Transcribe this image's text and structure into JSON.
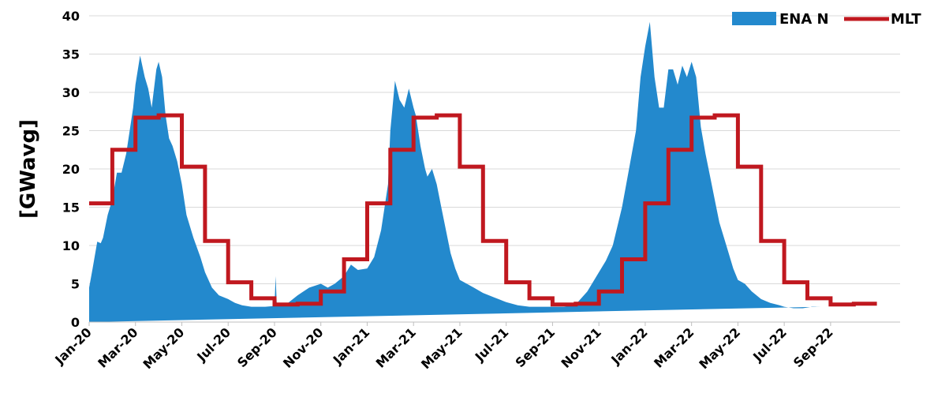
{
  "chart_data": {
    "type": "area",
    "ylabel": "[GWavg]",
    "ylim": [
      0,
      40
    ],
    "yticks": [
      0,
      5,
      10,
      15,
      20,
      25,
      30,
      35,
      40
    ],
    "xlim_month_index": [
      0,
      35
    ],
    "xtick_labels": [
      "Jan-20",
      "Mar-20",
      "May-20",
      "Jul-20",
      "Sep-20",
      "Nov-20",
      "Jan-21",
      "Mar-21",
      "May-21",
      "Jul-21",
      "Sep-21",
      "Nov-21",
      "Jan-22",
      "Mar-22",
      "May-22",
      "Jul-22",
      "Sep-22"
    ],
    "xtick_month_index": [
      0,
      2,
      4,
      6,
      8,
      10,
      12,
      14,
      16,
      18,
      20,
      22,
      24,
      26,
      28,
      30,
      32
    ],
    "grid": "horizontal",
    "legend_position": "top-right",
    "colors": {
      "ena": "#2389CD",
      "mlt": "#C0181F",
      "grid": "#D9D9D9"
    },
    "series": [
      {
        "name": "ENA N",
        "type": "area",
        "x_month_index": [
          0,
          0.15,
          0.35,
          0.5,
          0.6,
          0.8,
          1.0,
          1.2,
          1.4,
          1.6,
          1.75,
          1.9,
          2.0,
          2.2,
          2.4,
          2.55,
          2.7,
          2.9,
          3.0,
          3.15,
          3.3,
          3.45,
          3.6,
          3.8,
          4.0,
          4.2,
          4.5,
          4.8,
          5.0,
          5.3,
          5.6,
          6.0,
          6.3,
          6.6,
          7.0,
          7.3,
          7.6,
          8.0,
          8.05,
          8.1,
          8.2,
          8.5,
          9.0,
          9.5,
          10.0,
          10.3,
          10.6,
          11.0,
          11.3,
          11.6,
          12.0,
          12.3,
          12.6,
          12.9,
          13.0,
          13.2,
          13.4,
          13.6,
          13.8,
          14.0,
          14.1,
          14.3,
          14.5,
          14.6,
          14.8,
          15.0,
          15.2,
          15.4,
          15.6,
          15.8,
          16.0,
          16.3,
          16.6,
          17.0,
          17.5,
          18.0,
          18.5,
          19.0,
          19.5,
          20.0,
          20.5,
          21.0,
          21.5,
          22.0,
          22.3,
          22.6,
          23.0,
          23.3,
          23.6,
          23.8,
          24.0,
          24.2,
          24.4,
          24.6,
          24.8,
          25.0,
          25.2,
          25.4,
          25.6,
          25.8,
          26.0,
          26.2,
          26.4,
          26.6,
          26.8,
          27.0,
          27.2,
          27.4,
          27.6,
          27.8,
          28.0,
          28.3,
          28.6,
          29.0,
          29.4,
          29.8,
          30.0,
          30.4,
          30.8,
          31.2,
          31.6,
          32.0,
          32.5,
          33.0,
          33.5,
          34.0,
          34.5,
          35.0
        ],
        "values": [
          4.5,
          7,
          10.5,
          10.3,
          11,
          14,
          16,
          19.5,
          19.5,
          22,
          25,
          28,
          31,
          34.8,
          32,
          30.5,
          28,
          33,
          34,
          32,
          27,
          24,
          23,
          21,
          18,
          14,
          11,
          8.5,
          6.5,
          4.5,
          3.5,
          3,
          2.5,
          2.2,
          2,
          2,
          2,
          2.1,
          6,
          2.2,
          2.2,
          2.3,
          3.5,
          4.5,
          5,
          4.5,
          5,
          6,
          7.5,
          6.8,
          7,
          8.5,
          12,
          18,
          25,
          31.5,
          29,
          28,
          30.5,
          28,
          27,
          23,
          20,
          19,
          20,
          18,
          15,
          12,
          9,
          7,
          5.5,
          5,
          4.5,
          3.8,
          3.2,
          2.6,
          2.2,
          2,
          2,
          2,
          2,
          2.3,
          4,
          6.5,
          8,
          10,
          15,
          20,
          25,
          32,
          36,
          39.2,
          32,
          28,
          28,
          33,
          33,
          31,
          33.5,
          32,
          34,
          32,
          25.5,
          22,
          19,
          16,
          13,
          11,
          9,
          7,
          5.5,
          5,
          4,
          3,
          2.5,
          2.2,
          2,
          1.8,
          1.8,
          2,
          2
        ]
      },
      {
        "name": "MLT",
        "type": "step",
        "monthly_values": [
          15.5,
          22.5,
          26.7,
          27.0,
          20.3,
          10.6,
          5.2,
          3.1,
          2.3,
          2.4,
          4.0,
          8.2,
          15.5,
          22.5,
          26.7,
          27.0,
          20.3,
          10.6,
          5.2,
          3.1,
          2.3,
          2.4,
          4.0,
          8.2,
          15.5,
          22.5,
          26.7,
          27.0,
          20.3,
          10.6,
          5.2,
          3.1,
          2.3,
          2.4
        ]
      }
    ]
  }
}
